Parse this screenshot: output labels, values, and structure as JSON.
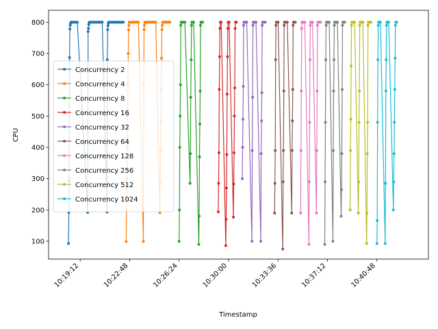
{
  "chart_data": {
    "type": "line",
    "title": "",
    "xlabel": "Timestamp",
    "ylabel": "CPU",
    "xlim": [
      "10:16:54",
      "10:44:33"
    ],
    "ylim": [
      43,
      838
    ],
    "x_ticks": [
      "10:19:12",
      "10:22:48",
      "10:26:24",
      "10:30:00",
      "10:33:36",
      "10:37:12",
      "10:40:48"
    ],
    "y_ticks": [
      100,
      200,
      300,
      400,
      500,
      600,
      700,
      800
    ],
    "grid": false,
    "legend": {
      "location": "center left"
    },
    "series": [
      {
        "name": "Concurrency 2",
        "color": "#1f77b4",
        "ramps": [
          {
            "x": "10:18:21",
            "values": [
              93,
              192,
              293,
              687,
              778,
              790,
              796,
              800
            ]
          },
          {
            "x": "10:19:45",
            "values": [
              192,
              770,
              780,
              792,
              798,
              800
            ]
          },
          {
            "x": "10:21:09",
            "values": [
              193,
              680,
              776,
              789,
              797,
              800
            ]
          }
        ],
        "plateau_until": [
          "10:19:00",
          "10:20:51",
          "10:22:21"
        ]
      },
      {
        "name": "Concurrency 4",
        "color": "#ff7f0e",
        "ramps": [
          {
            "x": "10:22:33",
            "values": [
              99,
              200,
              300,
              400,
              500,
              600,
              700,
              775,
              790,
              800
            ]
          },
          {
            "x": "10:23:48",
            "values": [
              99,
              600,
              776,
              790,
              800
            ]
          },
          {
            "x": "10:25:00",
            "values": [
              191,
              290,
              390,
              480,
              585,
              685,
              776,
              790,
              800
            ]
          }
        ],
        "plateau_until": [
          "10:23:30",
          "10:24:45",
          "10:25:45"
        ]
      },
      {
        "name": "Concurrency 8",
        "color": "#2ca02c",
        "ramps": [
          {
            "x": "10:26:24",
            "values": [
              100,
              200,
              400,
              500,
              600,
              790,
              800
            ]
          },
          {
            "x": "10:27:12",
            "values": [
              285,
              380,
              560,
              680,
              790,
              800
            ]
          },
          {
            "x": "10:27:50",
            "values": [
              90,
              180,
              370,
              475,
              580,
              790,
              800
            ]
          }
        ],
        "plateau_until": [
          "10:26:51",
          "10:27:30",
          "10:28:09"
        ]
      },
      {
        "name": "Concurrency 16",
        "color": "#d62728",
        "ramps": [
          {
            "x": "10:29:15",
            "values": [
              194,
              285,
              383,
              585,
              690,
              780,
              800
            ]
          },
          {
            "x": "10:29:48",
            "values": [
              86,
              170,
              270,
              377,
              570,
              690,
              780,
              800
            ]
          },
          {
            "x": "10:30:21",
            "values": [
              177,
              283,
              383,
              500,
              590,
              780,
              800
            ]
          }
        ],
        "plateau_until": [
          "10:29:30",
          "10:30:03",
          "10:30:36"
        ]
      },
      {
        "name": "Concurrency 32",
        "color": "#9467bd",
        "ramps": [
          {
            "x": "10:31:00",
            "values": [
              300,
              400,
              490,
              595,
              790,
              800
            ]
          },
          {
            "x": "10:31:42",
            "values": [
              100,
              390,
              560,
              790,
              800
            ]
          },
          {
            "x": "10:32:21",
            "values": [
              100,
              380,
              485,
              575,
              790,
              800
            ]
          }
        ],
        "plateau_until": [
          "10:31:21",
          "10:32:00",
          "10:32:42"
        ]
      },
      {
        "name": "Concurrency 64",
        "color": "#8c564b",
        "ramps": [
          {
            "x": "10:33:21",
            "values": [
              190,
              285,
              390,
              680,
              790,
              800
            ]
          },
          {
            "x": "10:33:57",
            "values": [
              75,
              290,
              390,
              580,
              790,
              800
            ]
          },
          {
            "x": "10:34:36",
            "values": [
              190,
              390,
              485,
              585,
              790,
              800
            ]
          }
        ],
        "plateau_until": [
          "10:33:39",
          "10:34:18",
          "10:34:54"
        ]
      },
      {
        "name": "Concurrency 128",
        "color": "#e377c2",
        "ramps": [
          {
            "x": "10:35:15",
            "values": [
              190,
              390,
              580,
              780,
              800
            ]
          },
          {
            "x": "10:35:51",
            "values": [
              90,
              290,
              480,
              680,
              790,
              800
            ]
          },
          {
            "x": "10:36:24",
            "values": [
              190,
              390,
              580,
              790,
              800
            ]
          }
        ],
        "plateau_until": [
          "10:35:33",
          "10:36:09",
          "10:36:42"
        ]
      },
      {
        "name": "Concurrency 256",
        "color": "#7f7f7f",
        "ramps": [
          {
            "x": "10:37:00",
            "values": [
              90,
              290,
              480,
              680,
              790,
              800
            ]
          },
          {
            "x": "10:37:36",
            "values": [
              100,
              390,
              580,
              680,
              790,
              800
            ]
          },
          {
            "x": "10:38:12",
            "values": [
              180,
              265,
              380,
              585,
              790,
              800
            ]
          }
        ],
        "plateau_until": [
          "10:37:21",
          "10:37:57",
          "10:38:30"
        ]
      },
      {
        "name": "Concurrency 512",
        "color": "#bcbd22",
        "ramps": [
          {
            "x": "10:38:51",
            "values": [
              200,
              390,
              490,
              660,
              790,
              800
            ]
          },
          {
            "x": "10:39:27",
            "values": [
              190,
              290,
              480,
              580,
              790,
              800
            ]
          },
          {
            "x": "10:40:03",
            "values": [
              93,
              190,
              380,
              480,
              790,
              800
            ]
          }
        ],
        "plateau_until": [
          "10:39:12",
          "10:39:48",
          "10:40:24"
        ]
      },
      {
        "name": "Concurrency 1024",
        "color": "#17becf",
        "ramps": [
          {
            "x": "10:40:48",
            "values": [
              93,
              166,
              480,
              680,
              790,
              800
            ]
          },
          {
            "x": "10:41:24",
            "values": [
              93,
              285,
              580,
              680,
              790,
              800
            ]
          },
          {
            "x": "10:42:00",
            "values": [
              200,
              290,
              380,
              480,
              585,
              685,
              790,
              800
            ]
          }
        ],
        "plateau_until": [
          "10:41:06",
          "10:41:42",
          "10:42:18"
        ]
      }
    ]
  }
}
